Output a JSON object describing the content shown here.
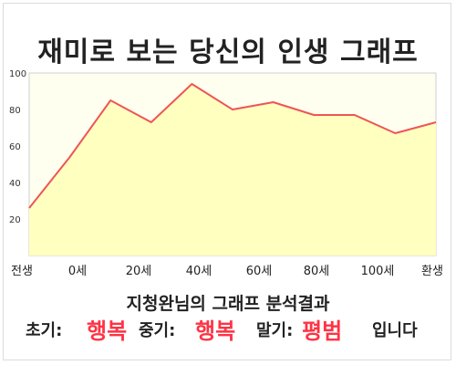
{
  "title": "재미로 보는 당신의 인생 그래프",
  "subtitle": "지청완님의 그래프 분석결과",
  "result": {
    "early_label": "초기:",
    "early_value": "행복",
    "mid_label": "중기:",
    "mid_value": "행복",
    "late_label": "말기:",
    "late_value": "평범",
    "ending": "입니다"
  },
  "colors": {
    "line": "#ee5555",
    "fill": "#ffffc0",
    "plot_background": "#fffff0",
    "highlight_text": "#ff3344"
  },
  "chart_data": {
    "type": "area",
    "title": "재미로 보는 당신의 인생 그래프",
    "xlabel": "",
    "ylabel": "",
    "x_tick_labels": [
      "전생",
      "0세",
      "20세",
      "40세",
      "60세",
      "80세",
      "100세",
      "환생"
    ],
    "y_ticks": [
      20,
      40,
      60,
      80,
      100
    ],
    "ylim": [
      0,
      100
    ],
    "grid": false,
    "series": [
      {
        "values": [
          26,
          54,
          85,
          73,
          94,
          80,
          84,
          77,
          77,
          67,
          73
        ]
      }
    ]
  }
}
